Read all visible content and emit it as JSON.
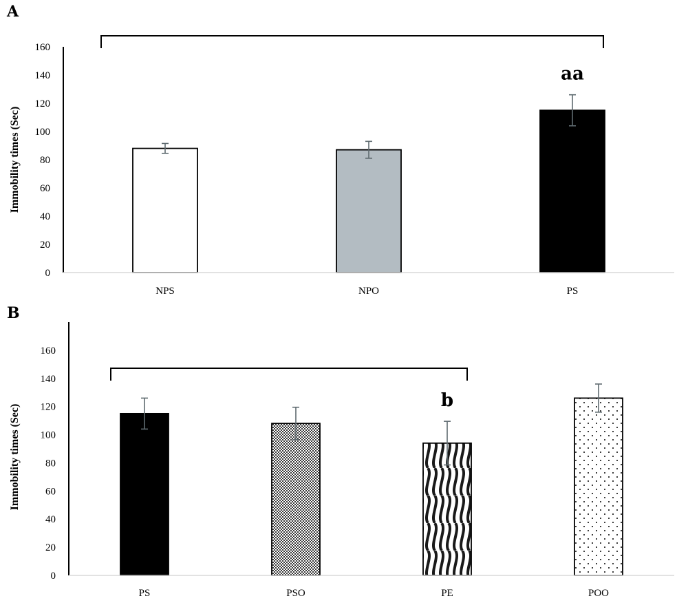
{
  "chart_data": [
    {
      "panel": "A",
      "type": "bar",
      "ylabel": "Immobility times (Sec)",
      "ylim": [
        0,
        160
      ],
      "yticks": [
        0,
        20,
        40,
        60,
        80,
        100,
        120,
        140,
        160
      ],
      "categories": [
        "NPS",
        "NPO",
        "PS"
      ],
      "values": [
        88,
        87,
        115
      ],
      "errors": [
        3.5,
        6,
        11
      ],
      "bar_styles": [
        "white",
        "gray",
        "black"
      ],
      "annotations": [
        {
          "category": "PS",
          "text": "aa"
        }
      ],
      "bracket": {
        "from": "NPS",
        "to": "PS"
      }
    },
    {
      "panel": "B",
      "type": "bar",
      "ylabel": "Immobility times (Sec)",
      "ylim": [
        0,
        180
      ],
      "yticks": [
        0,
        20,
        40,
        60,
        80,
        100,
        120,
        140,
        160
      ],
      "categories": [
        "PS",
        "PSO",
        "PE",
        "POO"
      ],
      "values": [
        115,
        108,
        94,
        126
      ],
      "errors": [
        11,
        11.5,
        15.5,
        10
      ],
      "bar_styles": [
        "black",
        "crosshatch",
        "wave",
        "dots"
      ],
      "annotations": [
        {
          "category": "PE",
          "text": "b"
        }
      ],
      "bracket": {
        "from": "PS",
        "to": "PE"
      }
    }
  ]
}
